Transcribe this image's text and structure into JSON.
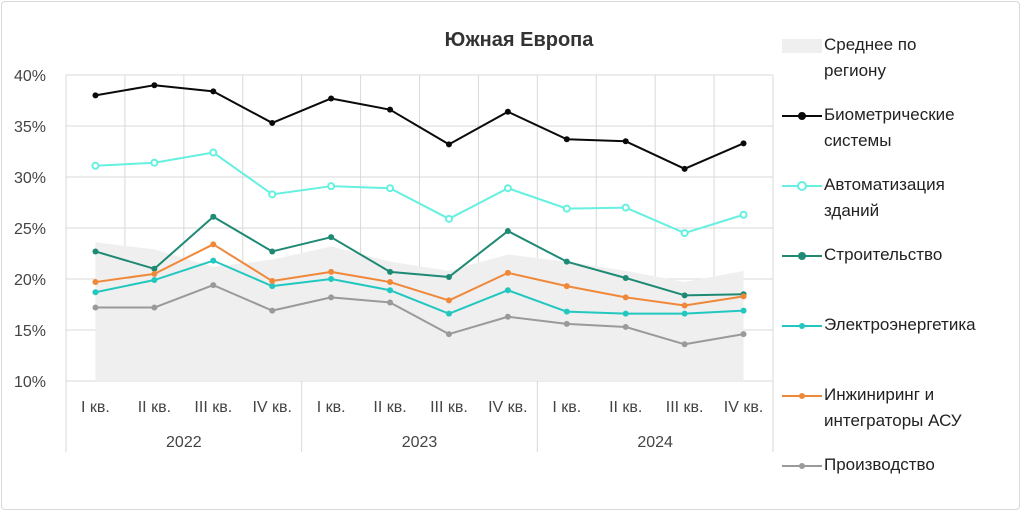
{
  "chart_data": {
    "type": "line",
    "title": "Южная Европа",
    "yticks": [
      "10%",
      "15%",
      "20%",
      "25%",
      "30%",
      "35%",
      "40%"
    ],
    "ylim": [
      10,
      40
    ],
    "quarters": [
      "I кв.",
      "II кв.",
      "III кв.",
      "IV кв.",
      "I кв.",
      "II кв.",
      "III кв.",
      "IV кв.",
      "I кв.",
      "II кв.",
      "III кв.",
      "IV кв."
    ],
    "years": [
      "2022",
      "2023",
      "2024"
    ],
    "average": {
      "name": "Среднее по региону",
      "color": "#efefef",
      "values": [
        23.6,
        22.9,
        21.2,
        21.9,
        23.2,
        21.7,
        20.8,
        22.4,
        21.7,
        20.8,
        19.7,
        20.8
      ]
    },
    "series": [
      {
        "name": "Биометрические системы",
        "color": "#0a0a0a",
        "marker": "filled",
        "values": [
          38.0,
          39.0,
          38.4,
          35.3,
          37.7,
          36.6,
          33.2,
          36.4,
          33.7,
          33.5,
          30.8,
          33.3
        ]
      },
      {
        "name": "Автоматизация зданий",
        "color": "#66f0e0",
        "marker": "hollow",
        "values": [
          31.1,
          31.4,
          32.4,
          28.3,
          29.1,
          28.9,
          25.9,
          28.9,
          26.9,
          27.0,
          24.5,
          26.3
        ]
      },
      {
        "name": "Строительство",
        "color": "#1e8a74",
        "marker": "filled",
        "values": [
          22.7,
          21.0,
          26.1,
          22.7,
          24.1,
          20.7,
          20.2,
          24.7,
          21.7,
          20.1,
          18.4,
          18.5
        ]
      },
      {
        "name": "Электроэнергетика",
        "color": "#22c8c0",
        "marker": "filled",
        "values": [
          18.7,
          19.9,
          21.8,
          19.3,
          20.0,
          18.9,
          16.6,
          18.9,
          16.8,
          16.6,
          16.6,
          16.9
        ]
      },
      {
        "name": "Инжиниринг и интеграторы АСУ",
        "color": "#f0883a",
        "marker": "filled",
        "values": [
          19.7,
          20.5,
          23.4,
          19.8,
          20.7,
          19.7,
          17.9,
          20.6,
          19.3,
          18.2,
          17.4,
          18.3
        ]
      },
      {
        "name": "Производство",
        "color": "#9a9a9a",
        "marker": "filled",
        "values": [
          17.2,
          17.2,
          19.4,
          16.9,
          18.2,
          17.7,
          14.6,
          16.3,
          15.6,
          15.3,
          13.6,
          14.6
        ]
      }
    ]
  },
  "legend": {
    "average": "Среднее по региону",
    "items": [
      "Биометрические системы",
      "Автоматизация зданий",
      "Строительство",
      "Электроэнергетика",
      "Инжиниринг и интеграторы АСУ",
      "Производство"
    ]
  }
}
